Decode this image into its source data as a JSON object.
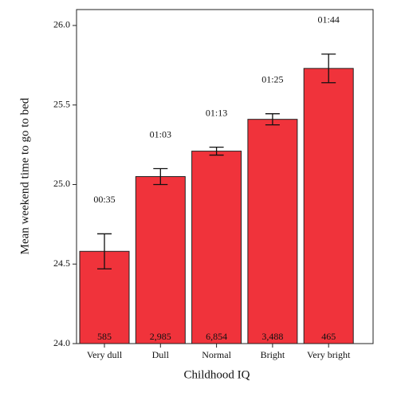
{
  "chart_data": {
    "type": "bar",
    "x_label": "Childhood IQ",
    "y_label": "Mean weekend time to go to bed",
    "categories": [
      "Very dull",
      "Dull",
      "Normal",
      "Bright",
      "Very bright"
    ],
    "values": [
      24.58,
      25.05,
      25.21,
      25.41,
      25.73
    ],
    "value_labels": [
      "00:35",
      "01:03",
      "01:13",
      "01:25",
      "01:44"
    ],
    "errors": [
      0.11,
      0.05,
      0.025,
      0.035,
      0.09
    ],
    "count_labels": [
      "585",
      "2,985",
      "6,854",
      "3,488",
      "465"
    ],
    "color": "#f0333b",
    "ylim": [
      24.0,
      26.1
    ],
    "yticks": [
      {
        "value": 24,
        "label": "24.0"
      },
      {
        "value": 24.5,
        "label": "24.5"
      },
      {
        "value": 25,
        "label": "25.0"
      },
      {
        "value": 25.5,
        "label": "25.5"
      },
      {
        "value": 26,
        "label": "26.0"
      }
    ]
  }
}
